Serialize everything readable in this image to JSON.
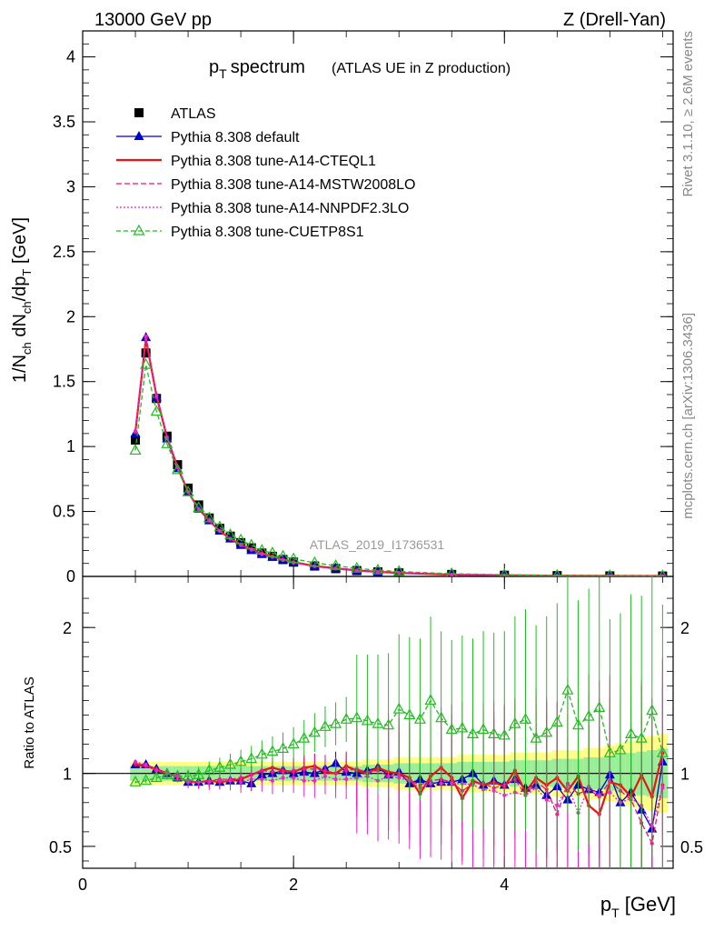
{
  "header": {
    "left": "13000 GeV pp",
    "right": "Z (Drell-Yan)"
  },
  "title": {
    "main_p": "p",
    "main_sub": "T",
    "main_rest": "spectrum",
    "paren": "(ATLAS UE in Z production)"
  },
  "side": {
    "rivet": "Rivet 3.1.10, ≥ 2.6M events",
    "mcplots": "mcplots.cern.ch [arXiv:1306.3436]"
  },
  "watermark": "ATLAS_2019_I1736531",
  "axes": {
    "ylabel_main_a": "1/N",
    "ylabel_main_b": "ch",
    "ylabel_main_c": " dN",
    "ylabel_main_d": "ch",
    "ylabel_main_e": "/dp",
    "ylabel_main_f": "T",
    "ylabel_main_g": " [GeV]",
    "ylabel_ratio": "Ratio to ATLAS",
    "xlabel_p": "p",
    "xlabel_sub": "T",
    "xlabel_unit": " [GeV]"
  },
  "legend": [
    {
      "label": "ATLAS",
      "color": "#000000",
      "style": "data"
    },
    {
      "label": "Pythia 8.308 default",
      "color": "#0000cc",
      "style": "solid-triangle"
    },
    {
      "label": "Pythia 8.308 tune-A14-CTEQL1",
      "color": "#ee1111",
      "style": "solid-thick"
    },
    {
      "label": "Pythia 8.308 tune-A14-MSTW2008LO",
      "color": "#ee1177",
      "style": "dashed"
    },
    {
      "label": "Pythia 8.308 tune-A14-NNPDF2.3LO",
      "color": "#ee22cc",
      "style": "dotted"
    },
    {
      "label": "Pythia 8.308 tune-CUETP8S1",
      "color": "#22bb22",
      "style": "dashed-open-triangle"
    }
  ],
  "chart_data": {
    "type": "line",
    "main": {
      "x": [
        0.5,
        0.6,
        0.7,
        0.8,
        0.9,
        1.0,
        1.1,
        1.2,
        1.3,
        1.4,
        1.5,
        1.6,
        1.7,
        1.8,
        1.9,
        2.0,
        2.2,
        2.4,
        2.6,
        2.8,
        3.0,
        3.5,
        4.0,
        4.5,
        5.0,
        5.5
      ],
      "xlim": [
        0,
        5.6
      ],
      "ylim": [
        0,
        4.2
      ],
      "yticks": [
        0,
        0.5,
        1,
        1.5,
        2,
        2.5,
        3,
        3.5,
        4
      ],
      "yticklabels": [
        "0",
        "0.5",
        "1",
        "1.5",
        "2",
        "2.5",
        "3",
        "3.5",
        "4"
      ],
      "series": [
        {
          "name": "ATLAS",
          "values": [
            1.05,
            1.72,
            1.37,
            1.08,
            0.86,
            0.68,
            0.55,
            0.45,
            0.37,
            0.31,
            0.26,
            0.22,
            0.18,
            0.155,
            0.13,
            0.11,
            0.08,
            0.06,
            0.045,
            0.035,
            0.027,
            0.015,
            0.009,
            0.006,
            0.004,
            0.003
          ]
        },
        {
          "name": "Pythia 8.308 default",
          "values": [
            1.1,
            1.84,
            1.38,
            1.06,
            0.83,
            0.65,
            0.52,
            0.43,
            0.35,
            0.29,
            0.24,
            0.2,
            0.17,
            0.15,
            0.13,
            0.11,
            0.08,
            0.065,
            0.045,
            0.034,
            0.026,
            0.014,
            0.0085,
            0.005,
            0.0037,
            0.0034
          ]
        },
        {
          "name": "Pythia 8.308 tune-A14-CTEQL1",
          "values": [
            1.11,
            1.83,
            1.39,
            1.07,
            0.84,
            0.65,
            0.52,
            0.43,
            0.35,
            0.29,
            0.245,
            0.21,
            0.18,
            0.155,
            0.13,
            0.11,
            0.08,
            0.062,
            0.046,
            0.035,
            0.027,
            0.013,
            0.009,
            0.0055,
            0.004,
            0.0033
          ]
        },
        {
          "name": "Pythia 8.308 tune-A14-MSTW2008LO",
          "values": [
            1.11,
            1.84,
            1.38,
            1.07,
            0.84,
            0.65,
            0.52,
            0.43,
            0.35,
            0.29,
            0.245,
            0.21,
            0.175,
            0.15,
            0.13,
            0.11,
            0.08,
            0.061,
            0.045,
            0.034,
            0.027,
            0.014,
            0.009,
            0.005,
            0.0038,
            0.003
          ]
        },
        {
          "name": "Pythia 8.308 tune-A14-NNPDF2.3LO",
          "values": [
            1.12,
            1.85,
            1.39,
            1.07,
            0.84,
            0.65,
            0.52,
            0.43,
            0.35,
            0.29,
            0.24,
            0.205,
            0.17,
            0.15,
            0.125,
            0.105,
            0.078,
            0.06,
            0.044,
            0.033,
            0.026,
            0.013,
            0.0085,
            0.005,
            0.0035,
            0.003
          ]
        },
        {
          "name": "Pythia 8.308 tune-CUETP8S1",
          "values": [
            0.97,
            1.63,
            1.27,
            1.02,
            0.82,
            0.65,
            0.53,
            0.45,
            0.38,
            0.32,
            0.28,
            0.24,
            0.2,
            0.18,
            0.155,
            0.135,
            0.105,
            0.082,
            0.062,
            0.048,
            0.038,
            0.021,
            0.013,
            0.008,
            0.006,
            0.004
          ]
        }
      ]
    },
    "ratio": {
      "x": [
        0.5,
        0.6,
        0.7,
        0.8,
        0.9,
        1.0,
        1.1,
        1.2,
        1.3,
        1.4,
        1.5,
        1.6,
        1.7,
        1.8,
        1.9,
        2.0,
        2.1,
        2.2,
        2.3,
        2.4,
        2.5,
        2.6,
        2.7,
        2.8,
        2.9,
        3.0,
        3.1,
        3.2,
        3.3,
        3.4,
        3.5,
        3.6,
        3.7,
        3.8,
        3.9,
        4.0,
        4.1,
        4.2,
        4.3,
        4.4,
        4.5,
        4.6,
        4.7,
        4.8,
        4.9,
        5.0,
        5.1,
        5.2,
        5.3,
        5.4,
        5.5
      ],
      "xlim": [
        0,
        5.6
      ],
      "ylim": [
        0.35,
        2.35
      ],
      "yticks": [
        0.5,
        1,
        2
      ],
      "yticklabels": [
        "0.5",
        "1",
        "2"
      ],
      "xticks": [
        0,
        2,
        4
      ],
      "xticklabels": [
        "0",
        "2",
        "4"
      ],
      "band_inner": 0.05,
      "band_outer": [
        0.05,
        0.05,
        0.05,
        0.05,
        0.05,
        0.05,
        0.05,
        0.05,
        0.05,
        0.05,
        0.05,
        0.05,
        0.05,
        0.05,
        0.05,
        0.05,
        0.05,
        0.05,
        0.05,
        0.05,
        0.05,
        0.05,
        0.06,
        0.06,
        0.06,
        0.07,
        0.07,
        0.07,
        0.07,
        0.07,
        0.07,
        0.08,
        0.08,
        0.08,
        0.08,
        0.08,
        0.09,
        0.09,
        0.09,
        0.09,
        0.1,
        0.1,
        0.1,
        0.11,
        0.11,
        0.12,
        0.13,
        0.14,
        0.15,
        0.16,
        0.17
      ],
      "series": [
        {
          "name": "Pythia 8.308 default",
          "values": [
            1.06,
            1.06,
            1.03,
            1.0,
            0.97,
            0.94,
            0.94,
            0.95,
            0.94,
            0.95,
            0.95,
            0.93,
            0.99,
            1.0,
            1.02,
            1.0,
            1.01,
            1.0,
            1.03,
            1.07,
            1.01,
            1.0,
            1.02,
            1.04,
            0.99,
            1.01,
            0.93,
            0.96,
            0.93,
            0.94,
            0.94,
            0.96,
            1.0,
            0.92,
            0.95,
            0.92,
            0.96,
            0.9,
            0.92,
            0.85,
            0.91,
            0.82,
            0.92,
            0.89,
            0.87,
            0.99,
            0.8,
            0.87,
            0.75,
            0.62,
            1.08
          ]
        },
        {
          "name": "Pythia 8.308 tune-A14-CTEQL1",
          "values": [
            1.06,
            1.05,
            1.03,
            1.0,
            0.98,
            0.94,
            0.94,
            0.95,
            0.94,
            0.95,
            0.96,
            0.99,
            1.02,
            1.04,
            1.02,
            1.01,
            1.04,
            1.05,
            1.01,
            1.0,
            1.05,
            1.02,
            1.0,
            1.04,
            1.01,
            1.0,
            0.97,
            0.86,
            0.98,
            1.04,
            0.97,
            0.83,
            0.95,
            0.92,
            0.94,
            0.91,
            1.02,
            0.87,
            0.97,
            0.92,
            0.97,
            0.88,
            0.98,
            0.78,
            0.72,
            0.94,
            0.92,
            0.84,
            0.99,
            0.84,
            1.14
          ]
        },
        {
          "name": "Pythia 8.308 tune-A14-MSTW2008LO",
          "values": [
            1.07,
            1.05,
            1.02,
            1.0,
            0.97,
            0.95,
            0.94,
            0.95,
            0.96,
            0.96,
            0.97,
            0.99,
            1.02,
            1.01,
            1.01,
            1.02,
            1.03,
            1.03,
            1.02,
            1.0,
            1.02,
            1.03,
            1.01,
            1.02,
            0.98,
            0.99,
            0.95,
            0.92,
            0.95,
            0.96,
            0.94,
            0.88,
            0.93,
            0.93,
            0.9,
            0.92,
            0.96,
            0.85,
            0.94,
            0.89,
            0.72,
            0.93,
            0.86,
            0.89,
            0.84,
            0.95,
            0.88,
            0.82,
            0.66,
            0.52,
            0.92
          ]
        },
        {
          "name": "Pythia 8.308 tune-A14-NNPDF2.3LO",
          "values": [
            1.08,
            1.06,
            1.02,
            1.0,
            0.98,
            0.94,
            0.94,
            0.94,
            0.95,
            0.95,
            0.94,
            0.96,
            0.96,
            0.95,
            0.97,
            0.97,
            0.95,
            0.95,
            0.98,
            0.96,
            0.96,
            0.97,
            0.98,
            0.95,
            0.98,
            0.97,
            0.95,
            0.9,
            0.93,
            0.93,
            0.93,
            0.93,
            0.92,
            0.89,
            0.88,
            0.85,
            0.87,
            0.85,
            0.9,
            0.82,
            0.78,
            0.92,
            0.73,
            0.91,
            0.85,
            0.87,
            0.8,
            0.83,
            0.78,
            0.64,
            0.9
          ]
        },
        {
          "name": "Pythia 8.308 tune-CUETP8S1",
          "values": [
            0.94,
            0.95,
            0.97,
            0.99,
            0.98,
            0.98,
            0.99,
            1.02,
            1.04,
            1.06,
            1.08,
            1.1,
            1.13,
            1.15,
            1.17,
            1.2,
            1.24,
            1.28,
            1.32,
            1.34,
            1.37,
            1.38,
            1.36,
            1.34,
            1.33,
            1.44,
            1.4,
            1.37,
            1.5,
            1.38,
            1.3,
            1.31,
            1.27,
            1.3,
            1.27,
            1.26,
            1.34,
            1.37,
            1.24,
            1.28,
            1.35,
            1.57,
            1.33,
            1.39,
            1.45,
            1.14,
            1.16,
            1.27,
            1.24,
            1.43,
            1.14
          ]
        }
      ]
    }
  }
}
